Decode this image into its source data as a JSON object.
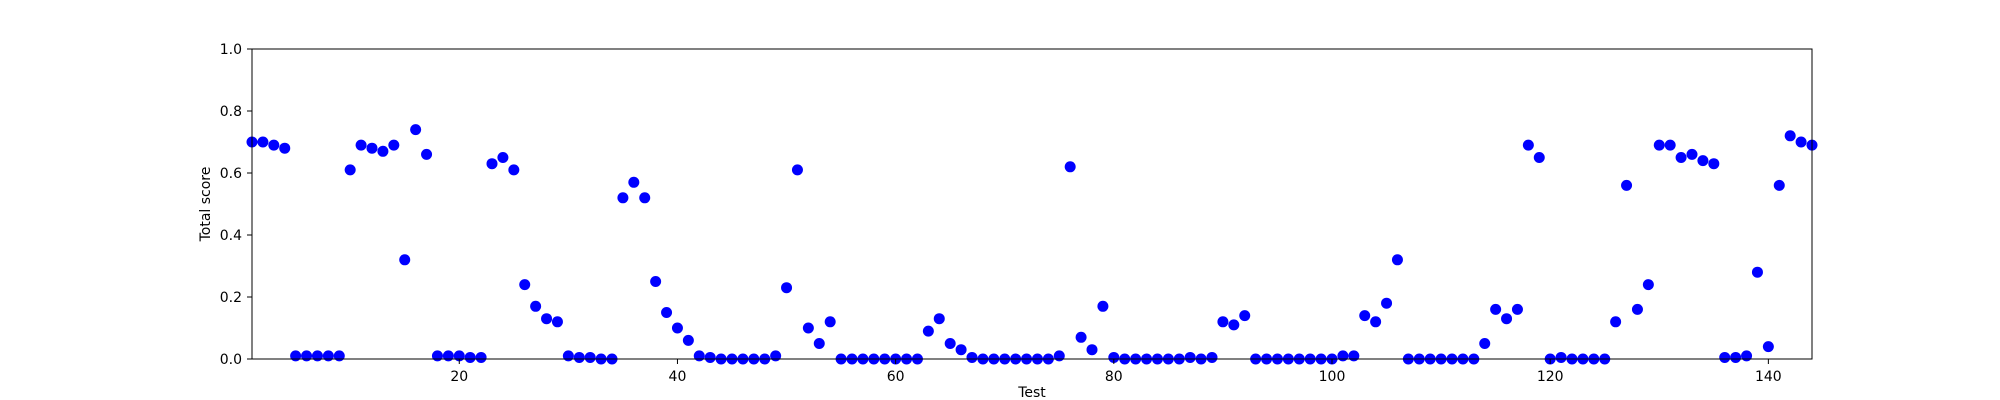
{
  "chart_data": {
    "type": "scatter",
    "title": "",
    "xlabel": "Test",
    "ylabel": "Total score",
    "xlim": [
      1,
      144
    ],
    "ylim": [
      0,
      1.0
    ],
    "x_ticks": [
      20,
      40,
      60,
      80,
      100,
      120,
      140
    ],
    "y_ticks": [
      0.0,
      0.2,
      0.4,
      0.6,
      0.8,
      1.0
    ],
    "x_tick_labels": [
      "20",
      "40",
      "60",
      "80",
      "100",
      "120",
      "140"
    ],
    "y_tick_labels": [
      "0.0",
      "0.2",
      "0.4",
      "0.6",
      "0.8",
      "1.0"
    ],
    "grid": false,
    "marker_color": "#0000ff",
    "series": [
      {
        "x": [
          1,
          2,
          3,
          4,
          5,
          6,
          7,
          8,
          9,
          10,
          11,
          12,
          13,
          14,
          15,
          16,
          17,
          18,
          19,
          20,
          21,
          22,
          23,
          24,
          25,
          26,
          27,
          28,
          29,
          30,
          31,
          32,
          33,
          34,
          35,
          36,
          37,
          38,
          39,
          40,
          41,
          42,
          43,
          44,
          45,
          46,
          47,
          48,
          49,
          50,
          51,
          52,
          53,
          54,
          55,
          56,
          57,
          58,
          59,
          60,
          61,
          62,
          63,
          64,
          65,
          66,
          67,
          68,
          69,
          70,
          71,
          72,
          73,
          74,
          75,
          76,
          77,
          78,
          79,
          80,
          81,
          82,
          83,
          84,
          85,
          86,
          87,
          88,
          89,
          90,
          91,
          92,
          93,
          94,
          95,
          96,
          97,
          98,
          99,
          100,
          101,
          102,
          103,
          104,
          105,
          106,
          107,
          108,
          109,
          110,
          111,
          112,
          113,
          114,
          115,
          116,
          117,
          118,
          119,
          120,
          121,
          122,
          123,
          124,
          125,
          126,
          127,
          128,
          129,
          130,
          131,
          132,
          133,
          134,
          135,
          136,
          137,
          138,
          139,
          140,
          141,
          142,
          143,
          144
        ],
        "y": [
          0.7,
          0.7,
          0.69,
          0.68,
          0.01,
          0.01,
          0.01,
          0.01,
          0.01,
          0.61,
          0.69,
          0.68,
          0.67,
          0.69,
          0.32,
          0.74,
          0.66,
          0.01,
          0.01,
          0.01,
          0.005,
          0.005,
          0.63,
          0.65,
          0.61,
          0.24,
          0.17,
          0.13,
          0.12,
          0.01,
          0.005,
          0.005,
          0.0,
          0.0,
          0.52,
          0.57,
          0.52,
          0.25,
          0.15,
          0.1,
          0.06,
          0.01,
          0.005,
          0.0,
          0.0,
          0.0,
          0.0,
          0.0,
          0.01,
          0.23,
          0.61,
          0.1,
          0.05,
          0.12,
          0.0,
          0.0,
          0.0,
          0.0,
          0.0,
          0.0,
          0.0,
          0.0,
          0.09,
          0.13,
          0.05,
          0.03,
          0.005,
          0.0,
          0.0,
          0.0,
          0.0,
          0.0,
          0.0,
          0.0,
          0.01,
          0.62,
          0.07,
          0.03,
          0.17,
          0.005,
          0.0,
          0.0,
          0.0,
          0.0,
          0.0,
          0.0,
          0.005,
          0.0,
          0.005,
          0.12,
          0.11,
          0.14,
          0.0,
          0.0,
          0.0,
          0.0,
          0.0,
          0.0,
          0.0,
          0.0,
          0.01,
          0.01,
          0.14,
          0.12,
          0.18,
          0.32,
          0.0,
          0.0,
          0.0,
          0.0,
          0.0,
          0.0,
          0.0,
          0.05,
          0.16,
          0.13,
          0.16,
          0.69,
          0.65,
          0.0,
          0.005,
          0.0,
          0.0,
          0.0,
          0.0,
          0.12,
          0.56,
          0.16,
          0.24,
          0.69,
          0.69,
          0.65,
          0.66,
          0.64,
          0.63,
          0.005,
          0.005,
          0.01,
          0.28,
          0.04,
          0.56,
          0.72,
          0.7,
          0.69
        ]
      }
    ]
  }
}
